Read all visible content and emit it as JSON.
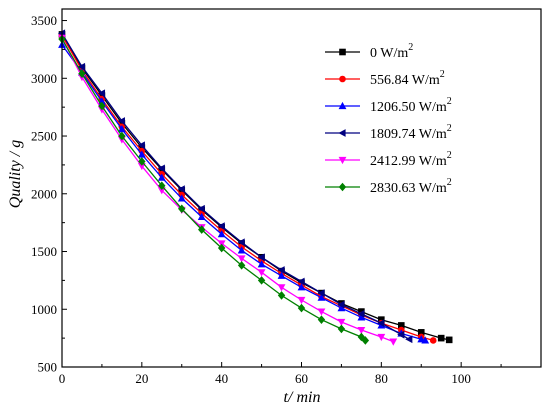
{
  "chart_data": {
    "type": "line",
    "title": "",
    "xlabel": "t/ min",
    "ylabel": "Quality / g",
    "xlim": [
      0,
      120
    ],
    "ylim": [
      500,
      3600
    ],
    "xticks": [
      0,
      20,
      40,
      60,
      80,
      100
    ],
    "yticks": [
      500,
      1000,
      1500,
      2000,
      2500,
      3000,
      3500
    ],
    "grid": false,
    "legend_position": "top-right",
    "series": [
      {
        "name": "0 W/m2",
        "legend_main": "0 W/m",
        "legend_sup": "2",
        "color": "#000000",
        "marker": "square",
        "x": [
          0,
          5,
          10,
          15,
          20,
          25,
          30,
          35,
          40,
          45,
          50,
          55,
          60,
          65,
          70,
          75,
          80,
          85,
          90,
          95,
          97
        ],
        "y": [
          3380,
          3090,
          2850,
          2610,
          2400,
          2210,
          2030,
          1860,
          1710,
          1570,
          1450,
          1330,
          1230,
          1140,
          1050,
          980,
          910,
          860,
          800,
          750,
          735
        ]
      },
      {
        "name": "556.84 W/m2",
        "legend_main": "556.84 W/m",
        "legend_sup": "2",
        "color": "#ff0000",
        "marker": "circle",
        "x": [
          0,
          5,
          10,
          15,
          20,
          25,
          30,
          35,
          40,
          45,
          50,
          55,
          60,
          65,
          70,
          75,
          80,
          85,
          90,
          93
        ],
        "y": [
          3370,
          3070,
          2820,
          2580,
          2370,
          2170,
          1990,
          1830,
          1680,
          1540,
          1420,
          1310,
          1210,
          1110,
          1030,
          950,
          880,
          820,
          760,
          730
        ]
      },
      {
        "name": "1206.50 W/m2",
        "legend_main": "1206.50 W/m",
        "legend_sup": "2",
        "color": "#0000ff",
        "marker": "triangle-up",
        "x": [
          0,
          5,
          10,
          15,
          20,
          25,
          30,
          35,
          40,
          45,
          50,
          55,
          60,
          65,
          70,
          75,
          80,
          85,
          90,
          91
        ],
        "y": [
          3290,
          3050,
          2800,
          2560,
          2340,
          2140,
          1960,
          1800,
          1650,
          1510,
          1390,
          1290,
          1190,
          1100,
          1010,
          930,
          860,
          790,
          740,
          730
        ]
      },
      {
        "name": "1809.74 W/m2",
        "legend_main": "1809.74 W/m",
        "legend_sup": "2",
        "color": "#000080",
        "marker": "triangle-left",
        "x": [
          0,
          5,
          10,
          15,
          20,
          25,
          30,
          35,
          40,
          45,
          50,
          55,
          60,
          65,
          70,
          75,
          80,
          85,
          87
        ],
        "y": [
          3390,
          3100,
          2870,
          2630,
          2420,
          2220,
          2040,
          1870,
          1720,
          1580,
          1450,
          1340,
          1240,
          1140,
          1040,
          960,
          880,
          780,
          740
        ]
      },
      {
        "name": "2412.99 W/m2",
        "legend_main": "2412.99 W/m",
        "legend_sup": "2",
        "color": "#ff00ff",
        "marker": "triangle-down",
        "x": [
          0,
          5,
          10,
          15,
          20,
          25,
          30,
          35,
          40,
          45,
          50,
          55,
          60,
          65,
          70,
          75,
          80,
          83
        ],
        "y": [
          3350,
          3010,
          2730,
          2470,
          2240,
          2030,
          1860,
          1710,
          1570,
          1440,
          1320,
          1190,
          1080,
          980,
          890,
          820,
          760,
          720
        ]
      },
      {
        "name": "2830.63 W/m2",
        "legend_main": "2830.63 W/m",
        "legend_sup": "2",
        "color": "#008000",
        "marker": "diamond",
        "x": [
          0,
          5,
          10,
          15,
          20,
          25,
          30,
          35,
          40,
          45,
          50,
          55,
          60,
          65,
          70,
          75,
          76
        ],
        "y": [
          3340,
          3040,
          2760,
          2500,
          2280,
          2070,
          1870,
          1690,
          1530,
          1380,
          1250,
          1120,
          1010,
          910,
          830,
          760,
          730
        ]
      }
    ]
  }
}
